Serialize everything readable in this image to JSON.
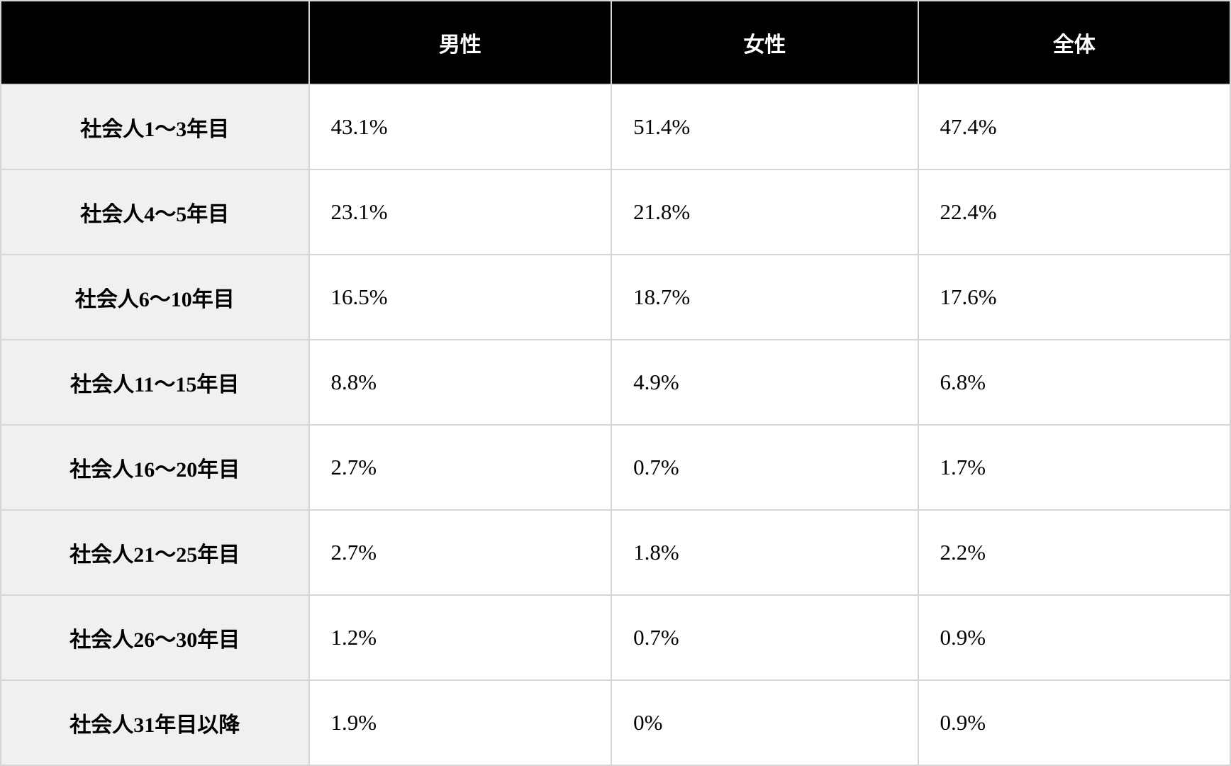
{
  "table": {
    "columns": [
      "",
      "男性",
      "女性",
      "全体"
    ],
    "rows": [
      {
        "label": "社会人1〜3年目",
        "values": [
          "43.1%",
          "51.4%",
          "47.4%"
        ]
      },
      {
        "label": "社会人4〜5年目",
        "values": [
          "23.1%",
          "21.8%",
          "22.4%"
        ]
      },
      {
        "label": "社会人6〜10年目",
        "values": [
          "16.5%",
          "18.7%",
          "17.6%"
        ]
      },
      {
        "label": "社会人11〜15年目",
        "values": [
          "8.8%",
          "4.9%",
          "6.8%"
        ]
      },
      {
        "label": "社会人16〜20年目",
        "values": [
          "2.7%",
          "0.7%",
          "1.7%"
        ]
      },
      {
        "label": "社会人21〜25年目",
        "values": [
          "2.7%",
          "1.8%",
          "2.2%"
        ]
      },
      {
        "label": "社会人26〜30年目",
        "values": [
          "1.2%",
          "0.7%",
          "0.9%"
        ]
      },
      {
        "label": "社会人31年目以降",
        "values": [
          "1.9%",
          "0%",
          "0.9%"
        ]
      }
    ]
  },
  "colors": {
    "header_bg": "#000000",
    "header_text": "#ffffff",
    "row_header_bg": "#f0f0f0",
    "cell_bg": "#ffffff",
    "border": "#d6d6d6",
    "text": "#000000"
  },
  "chart_data": {
    "type": "table",
    "title": "",
    "categories": [
      "社会人1〜3年目",
      "社会人4〜5年目",
      "社会人6〜10年目",
      "社会人11〜15年目",
      "社会人16〜20年目",
      "社会人21〜25年目",
      "社会人26〜30年目",
      "社会人31年目以降"
    ],
    "series": [
      {
        "name": "男性",
        "values": [
          43.1,
          23.1,
          16.5,
          8.8,
          2.7,
          2.7,
          1.2,
          1.9
        ]
      },
      {
        "name": "女性",
        "values": [
          51.4,
          21.8,
          18.7,
          4.9,
          0.7,
          1.8,
          0.7,
          0
        ]
      },
      {
        "name": "全体",
        "values": [
          47.4,
          22.4,
          17.6,
          6.8,
          1.7,
          2.2,
          0.9,
          0.9
        ]
      }
    ],
    "unit": "%",
    "layout": "rows are career-tenure categories; columns are gender segments; grid on; black header row; gray category column"
  }
}
